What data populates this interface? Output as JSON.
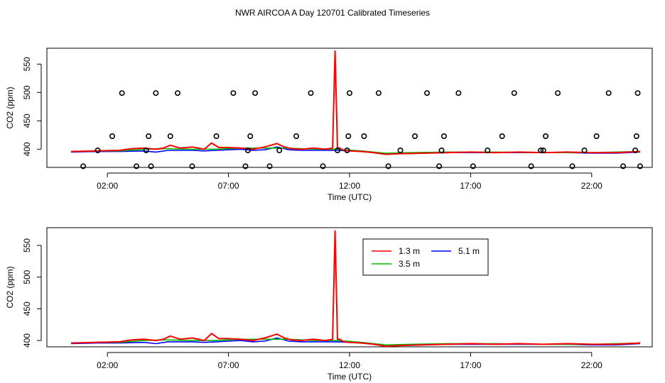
{
  "title": "NWR AIRCOA A  Day 120701  Calibrated Timeseries",
  "colors": {
    "1.3 m": "#ff0000",
    "3.5 m": "#00bb00",
    "5.1 m": "#0000ff",
    "markers": "#000000",
    "axes": "#000000"
  },
  "chart_data": [
    {
      "type": "line",
      "title": "",
      "xlabel": "Time (UTC)",
      "ylabel": "CO2 (ppm)",
      "xlim": [
        -0.5,
        24.5
      ],
      "ylim": [
        368,
        578
      ],
      "x_ticks": [
        2,
        7,
        12,
        17,
        22
      ],
      "x_tick_labels": [
        "02:00",
        "07:00",
        "12:00",
        "17:00",
        "22:00"
      ],
      "y_ticks": [
        400,
        450,
        500,
        550
      ],
      "y_tick_labels": [
        "400",
        "450",
        "500",
        "550"
      ],
      "legend": null,
      "series": [
        {
          "name": "5.1 m",
          "color": "#0000ff",
          "x": [
            0.5,
            1.5,
            2.5,
            3.5,
            4.0,
            4.5,
            5.0,
            5.5,
            6.0,
            6.5,
            7.0,
            7.5,
            8.0,
            8.5,
            9.0,
            9.5,
            10.0,
            10.5,
            11.0,
            11.5,
            12.0,
            12.5,
            13.0,
            13.5,
            14.0,
            15.0,
            16.0,
            17.0,
            18.0,
            19.0,
            20.0,
            21.0,
            22.0,
            23.0,
            24.0
          ],
          "values": [
            395,
            396,
            396,
            397,
            395,
            398,
            398,
            398,
            397,
            398,
            399,
            400,
            398,
            399,
            404,
            399,
            398,
            398,
            398,
            398,
            397,
            396,
            394,
            391,
            392,
            393,
            394,
            394,
            394,
            394,
            394,
            394,
            393,
            393,
            395
          ]
        },
        {
          "name": "3.5 m",
          "color": "#00bb00",
          "x": [
            0.5,
            1.5,
            2.5,
            3.5,
            4.5,
            5.5,
            6.5,
            7.5,
            8.5,
            9.5,
            10.5,
            11.5,
            12.5,
            13.5,
            14.5,
            16.0,
            18.0,
            20.0,
            22.0,
            24.0
          ],
          "values": [
            396,
            397,
            397,
            400,
            401,
            400,
            400,
            402,
            402,
            402,
            400,
            400,
            397,
            393,
            394,
            395,
            395,
            394,
            394,
            396
          ]
        },
        {
          "name": "1.3 m",
          "color": "#ff0000",
          "x": [
            0.5,
            1.5,
            2.5,
            3.0,
            3.5,
            4.0,
            4.3,
            4.6,
            5.0,
            5.5,
            6.0,
            6.3,
            6.6,
            7.0,
            7.5,
            8.0,
            8.5,
            9.0,
            9.3,
            9.6,
            10.0,
            10.5,
            11.0,
            11.3,
            11.4,
            11.5,
            11.6,
            11.75,
            12.0,
            12.5,
            13.0,
            13.5,
            14.0,
            15.0,
            16.0,
            17.0,
            18.0,
            19.0,
            20.0,
            21.0,
            22.0,
            23.0,
            24.0
          ],
          "values": [
            396,
            397,
            398,
            401,
            402,
            400,
            402,
            407,
            402,
            404,
            400,
            411,
            403,
            403,
            402,
            400,
            404,
            410,
            404,
            401,
            400,
            402,
            400,
            402,
            573,
            402,
            402,
            398,
            397,
            396,
            394,
            391,
            392,
            393,
            394,
            395,
            394,
            395,
            394,
            395,
            394,
            394,
            396
          ]
        }
      ],
      "markers": {
        "symbol": "open-circle",
        "color": "#000000",
        "x": [
          1.0,
          1.6,
          2.2,
          2.6,
          3.2,
          3.6,
          3.7,
          3.8,
          4.0,
          4.6,
          4.9,
          5.5,
          6.5,
          7.2,
          7.7,
          7.8,
          7.9,
          8.1,
          8.7,
          9.1,
          9.8,
          10.4,
          10.9,
          11.5,
          11.9,
          11.95,
          12.0,
          12.6,
          13.2,
          13.6,
          14.1,
          14.7,
          15.2,
          15.7,
          15.8,
          15.9,
          16.5,
          17.1,
          17.7,
          18.3,
          18.8,
          19.5,
          19.9,
          20.0,
          20.1,
          20.6,
          21.2,
          21.7,
          22.2,
          22.7,
          23.3,
          23.8,
          23.85,
          23.9,
          24.0
        ],
        "values": [
          370,
          398,
          423,
          499,
          370,
          398,
          423,
          370,
          499,
          423,
          499,
          370,
          423,
          499,
          370,
          398,
          423,
          499,
          370,
          398,
          423,
          499,
          370,
          398,
          398,
          423,
          499,
          423,
          499,
          370,
          398,
          423,
          499,
          370,
          398,
          423,
          499,
          370,
          398,
          423,
          499,
          370,
          398,
          398,
          423,
          499,
          370,
          398,
          423,
          499,
          370,
          398,
          423,
          499,
          370
        ]
      }
    },
    {
      "type": "line",
      "title": "",
      "xlabel": "Time (UTC)",
      "ylabel": "CO2 (ppm)",
      "xlim": [
        -0.5,
        24.5
      ],
      "ylim": [
        390,
        578
      ],
      "x_ticks": [
        2,
        7,
        12,
        17,
        22
      ],
      "x_tick_labels": [
        "02:00",
        "07:00",
        "12:00",
        "17:00",
        "22:00"
      ],
      "y_ticks": [
        400,
        450,
        500,
        550
      ],
      "y_tick_labels": [
        "400",
        "450",
        "500",
        "550"
      ],
      "legend": {
        "placement": "top-center",
        "entries": [
          {
            "label": "1.3 m",
            "color": "#ff0000"
          },
          {
            "label": "5.1 m",
            "color": "#0000ff"
          },
          {
            "label": "3.5 m",
            "color": "#00bb00"
          }
        ]
      },
      "series": [
        {
          "name": "5.1 m",
          "color": "#0000ff",
          "x": [
            0.5,
            1.5,
            2.5,
            3.5,
            4.0,
            4.5,
            5.0,
            5.5,
            6.0,
            6.5,
            7.0,
            7.5,
            8.0,
            8.5,
            9.0,
            9.5,
            10.0,
            10.5,
            11.0,
            11.5,
            12.0,
            12.5,
            13.0,
            13.5,
            14.0,
            15.0,
            16.0,
            17.0,
            18.0,
            19.0,
            20.0,
            21.0,
            22.0,
            23.0,
            24.0
          ],
          "values": [
            395,
            396,
            396,
            397,
            395,
            398,
            398,
            398,
            397,
            398,
            399,
            400,
            398,
            399,
            404,
            399,
            398,
            398,
            398,
            398,
            397,
            396,
            394,
            391,
            392,
            393,
            394,
            394,
            394,
            394,
            394,
            394,
            393,
            393,
            395
          ]
        },
        {
          "name": "3.5 m",
          "color": "#00bb00",
          "x": [
            0.5,
            1.5,
            2.5,
            3.5,
            4.5,
            5.5,
            6.5,
            7.5,
            8.5,
            9.5,
            10.5,
            11.5,
            12.5,
            13.5,
            14.5,
            16.0,
            18.0,
            20.0,
            22.0,
            24.0
          ],
          "values": [
            396,
            397,
            397,
            400,
            401,
            400,
            400,
            402,
            402,
            402,
            400,
            400,
            397,
            393,
            394,
            395,
            395,
            394,
            394,
            396
          ]
        },
        {
          "name": "1.3 m",
          "color": "#ff0000",
          "x": [
            0.5,
            1.5,
            2.5,
            3.0,
            3.5,
            4.0,
            4.3,
            4.6,
            5.0,
            5.5,
            6.0,
            6.3,
            6.6,
            7.0,
            7.5,
            8.0,
            8.5,
            9.0,
            9.3,
            9.6,
            10.0,
            10.5,
            11.0,
            11.3,
            11.4,
            11.5,
            11.6,
            11.75,
            12.0,
            12.5,
            13.0,
            13.5,
            14.0,
            15.0,
            16.0,
            17.0,
            18.0,
            19.0,
            20.0,
            21.0,
            22.0,
            23.0,
            24.0
          ],
          "values": [
            396,
            397,
            398,
            401,
            402,
            400,
            402,
            407,
            402,
            404,
            400,
            411,
            403,
            403,
            402,
            400,
            404,
            410,
            404,
            401,
            400,
            402,
            400,
            402,
            573,
            402,
            402,
            398,
            397,
            396,
            394,
            391,
            392,
            393,
            394,
            395,
            394,
            395,
            394,
            395,
            394,
            394,
            396
          ]
        }
      ]
    }
  ]
}
